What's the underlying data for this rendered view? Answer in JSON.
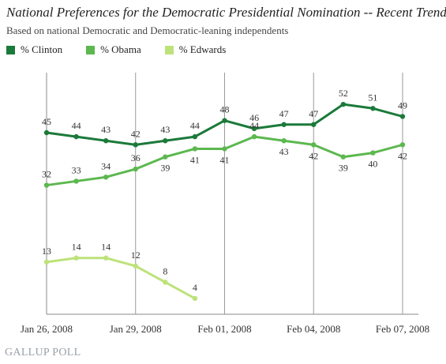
{
  "chart_data": {
    "type": "line",
    "title": "National Preferences for the Democratic Presidential Nomination -- Recent Trend",
    "subtitle": "Based on national Democratic and Democratic-leaning independents",
    "x_tick_labels": [
      "Jan 26, 2008",
      "Jan 29, 2008",
      "Feb 01, 2008",
      "Feb 04, 2008",
      "Feb 07, 2008"
    ],
    "x_tick_days": [
      0,
      3,
      6,
      9,
      12
    ],
    "legend_position": "top-left",
    "series": [
      {
        "name": "% Clinton",
        "color": "#1b7a3a",
        "x": [
          0,
          1,
          2,
          3,
          4,
          5,
          6,
          7,
          8,
          9,
          10,
          11,
          12
        ],
        "values": [
          45,
          44,
          43,
          42,
          43,
          44,
          48,
          46,
          47,
          47,
          52,
          51,
          49
        ],
        "label_offsets": [
          -10,
          -10,
          -10,
          -10,
          -10,
          -10,
          -10,
          -10,
          -10,
          -10,
          -10,
          -10,
          -10
        ]
      },
      {
        "name": "% Obama",
        "color": "#5cb84f",
        "x": [
          0,
          1,
          2,
          3,
          4,
          5,
          6,
          7,
          8,
          9,
          10,
          11,
          12
        ],
        "values": [
          32,
          33,
          34,
          36,
          39,
          41,
          41,
          44,
          43,
          42,
          39,
          40,
          42
        ],
        "label_offsets": [
          -10,
          -10,
          -10,
          -10,
          18,
          18,
          18,
          -10,
          18,
          18,
          18,
          18,
          18
        ]
      },
      {
        "name": "% Edwards",
        "color": "#bde27a",
        "x": [
          0,
          1,
          2,
          3,
          4,
          5
        ],
        "values": [
          13,
          14,
          14,
          12,
          8,
          4
        ],
        "label_offsets": [
          -10,
          -10,
          -10,
          -10,
          -10,
          -10
        ]
      }
    ],
    "grid": "vertical",
    "source": "GALLUP POLL"
  },
  "footer": {
    "brand": "GALLUP POLL"
  }
}
